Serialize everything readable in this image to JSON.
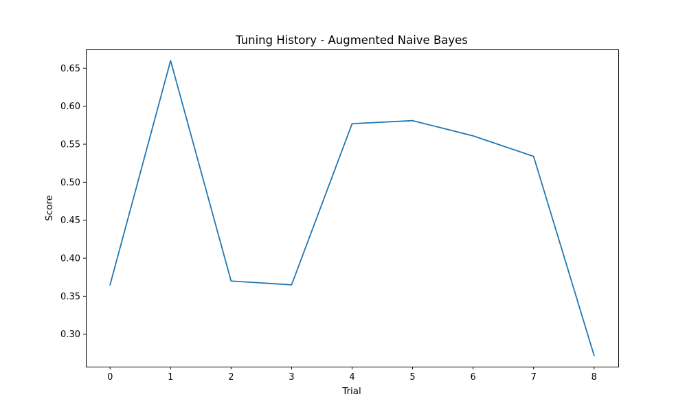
{
  "chart_data": {
    "type": "line",
    "title": "Tuning History - Augmented Naive Bayes",
    "xlabel": "Trial",
    "ylabel": "Score",
    "x": [
      0,
      1,
      2,
      3,
      4,
      5,
      6,
      7,
      8
    ],
    "series": [
      {
        "color": "#1f77b4",
        "values": [
          0.365,
          0.66,
          0.37,
          0.365,
          0.577,
          0.581,
          0.561,
          0.534,
          0.272
        ]
      }
    ],
    "xticks": [
      "0",
      "1",
      "2",
      "3",
      "4",
      "5",
      "6",
      "7",
      "8"
    ],
    "yticks": [
      "0.30",
      "0.35",
      "0.40",
      "0.45",
      "0.50",
      "0.55",
      "0.60",
      "0.65"
    ],
    "xlim": [
      -0.4,
      8.4
    ],
    "ylim": [
      0.2573,
      0.6747
    ],
    "grid": false
  }
}
